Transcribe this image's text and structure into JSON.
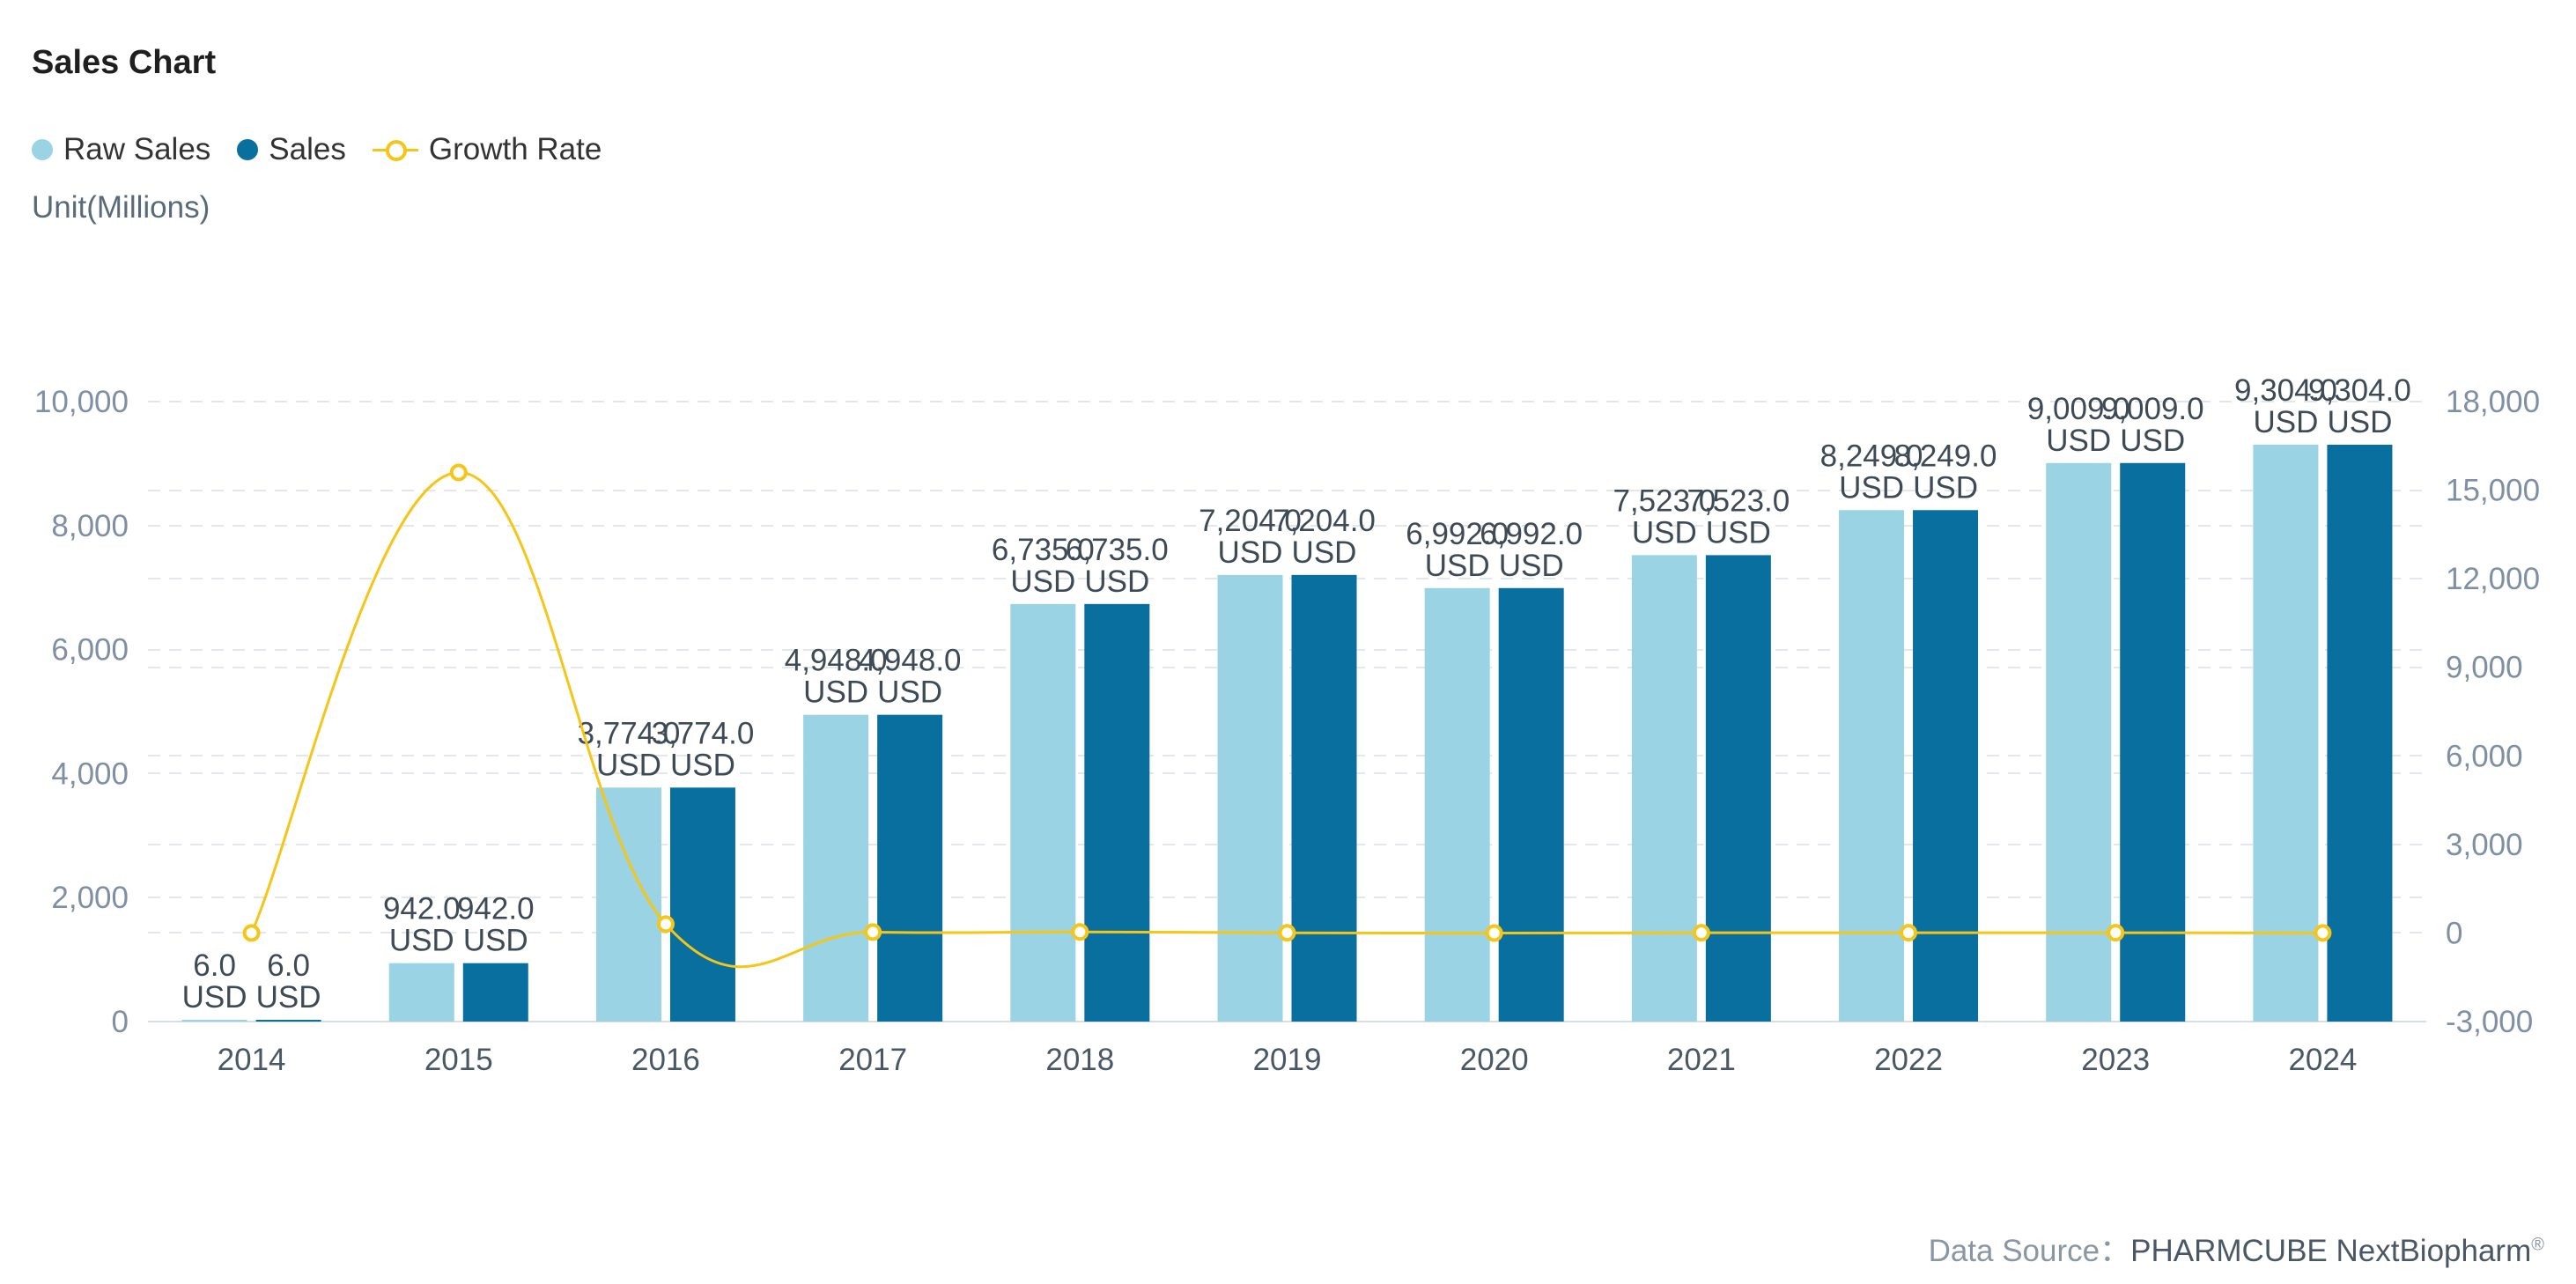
{
  "title": "Sales Chart",
  "legend": {
    "raw_sales": "Raw Sales",
    "sales": "Sales",
    "growth_rate": "Growth Rate"
  },
  "unit": "Unit(Millions)",
  "source": {
    "label": "Data Source：",
    "brand": "PHARMCUBE NextBiopharm",
    "mark": "®"
  },
  "colors": {
    "raw_sales": "#9ad3e3",
    "sales": "#086f9f",
    "growth_rate": "#f5c518",
    "grid": "#e3e7ec",
    "axis_text": "#7f8fa4",
    "label_text": "#3e4a56"
  },
  "chart_data": {
    "type": "bar",
    "categories": [
      "2014",
      "2015",
      "2016",
      "2017",
      "2018",
      "2019",
      "2020",
      "2021",
      "2022",
      "2023",
      "2024"
    ],
    "series": [
      {
        "name": "Raw Sales",
        "type": "bar",
        "axis": "left",
        "values": [
          6.0,
          942.0,
          3774.0,
          4948.0,
          6735.0,
          7204.0,
          6992.0,
          7523.0,
          8249.0,
          9009.0,
          9304.0
        ],
        "labels": [
          "6.0 USD",
          "942.0 USD",
          "3,774.0 USD",
          "4,948.0 USD",
          "6,735.0 USD",
          "7,204.0 USD",
          "6,992.0 USD",
          "7,523.0 USD",
          "8,249.0 USD",
          "9,009.0 USD",
          "9,304.0 USD"
        ]
      },
      {
        "name": "Sales",
        "type": "bar",
        "axis": "left",
        "values": [
          6.0,
          942.0,
          3774.0,
          4948.0,
          6735.0,
          7204.0,
          6992.0,
          7523.0,
          8249.0,
          9009.0,
          9304.0
        ],
        "labels": [
          "6.0 USD",
          "942.0 USD",
          "3,774.0 USD",
          "4,948.0 USD",
          "6,735.0 USD",
          "7,204.0 USD",
          "6,992.0 USD",
          "7,523.0 USD",
          "8,249.0 USD",
          "9,009.0 USD",
          "9,304.0 USD"
        ]
      },
      {
        "name": "Growth Rate",
        "type": "line",
        "axis": "right",
        "values": [
          0,
          15600,
          300,
          31.1,
          36.1,
          7.0,
          -2.9,
          7.6,
          9.7,
          9.2,
          3.3
        ]
      }
    ],
    "y_left": {
      "ticks": [
        "0",
        "2,000",
        "4,000",
        "6,000",
        "8,000",
        "10,000"
      ],
      "ylim": [
        0,
        10000
      ]
    },
    "y_right": {
      "ticks": [
        "-3,000",
        "0",
        "3,000",
        "6,000",
        "9,000",
        "12,000",
        "15,000",
        "18,000"
      ],
      "ylim": [
        -3000,
        18000
      ]
    },
    "grid": true,
    "legend_position": "top-left"
  }
}
